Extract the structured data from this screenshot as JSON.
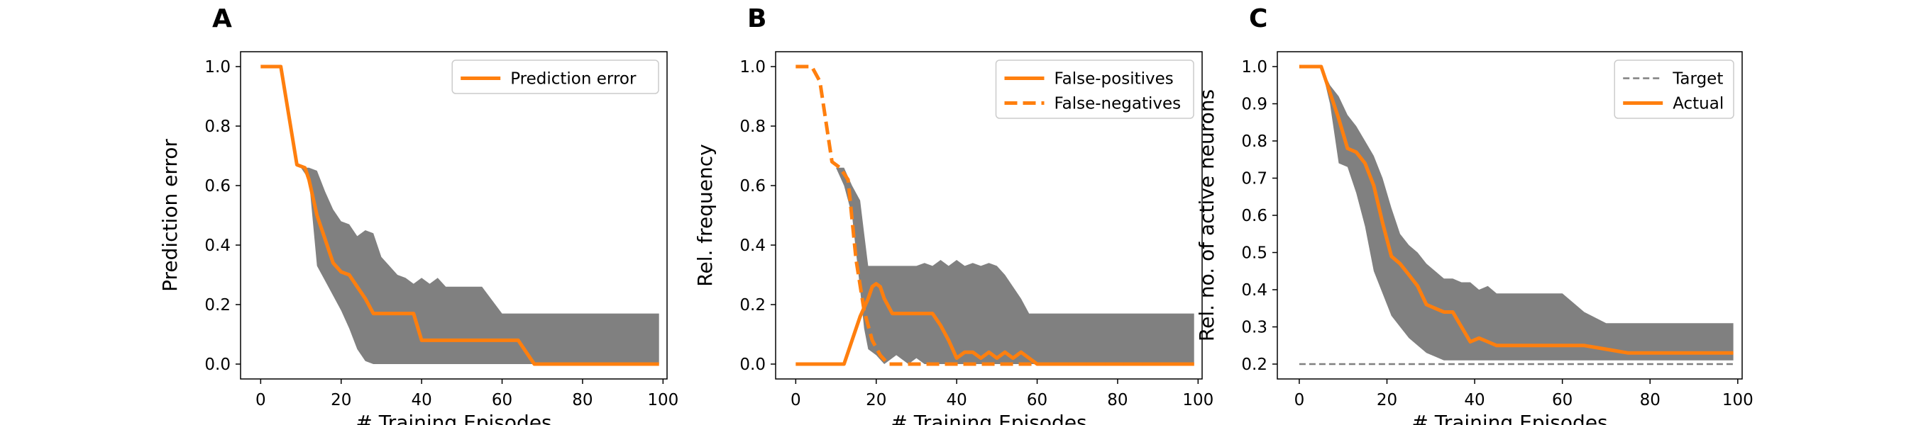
{
  "figure": {
    "panel_count": 3
  },
  "colors": {
    "accent": "#ff7f0e",
    "band": "#808080",
    "target": "#808080",
    "axes": "#000000"
  },
  "chart_data": [
    {
      "panel_label": "A",
      "type": "line",
      "xlabel": "# Training Episodes",
      "ylabel": "Prediction error",
      "xlim": [
        -5,
        101
      ],
      "ylim": [
        -0.05,
        1.05
      ],
      "xticks": [
        0,
        20,
        40,
        60,
        80,
        100
      ],
      "yticks": [
        0.0,
        0.2,
        0.4,
        0.6,
        0.8,
        1.0
      ],
      "ytick_decimals": 1,
      "grid": false,
      "legend_position": "top-right",
      "legend": [
        "Prediction error"
      ],
      "band": {
        "x": [
          10,
          12,
          14,
          16,
          18,
          20,
          22,
          24,
          26,
          28,
          30,
          32,
          34,
          36,
          38,
          40,
          42,
          44,
          46,
          50,
          55,
          60,
          65,
          70,
          75,
          80,
          85,
          90,
          95,
          99
        ],
        "upper": [
          0.66,
          0.66,
          0.65,
          0.58,
          0.52,
          0.48,
          0.47,
          0.43,
          0.45,
          0.44,
          0.36,
          0.33,
          0.3,
          0.29,
          0.27,
          0.29,
          0.27,
          0.29,
          0.26,
          0.26,
          0.26,
          0.17,
          0.17,
          0.17,
          0.17,
          0.17,
          0.17,
          0.17,
          0.17,
          0.17
        ],
        "lower": [
          0.66,
          0.62,
          0.33,
          0.28,
          0.23,
          0.18,
          0.12,
          0.05,
          0.01,
          0.0,
          0.0,
          0.0,
          0.0,
          0.0,
          0.0,
          0.0,
          0.0,
          0.0,
          0.0,
          0.0,
          0.0,
          0.0,
          0.0,
          0.0,
          0.0,
          0.0,
          0.0,
          0.0,
          0.0,
          0.0
        ]
      },
      "series": [
        {
          "name": "Prediction error",
          "style": "solid",
          "x": [
            0,
            5,
            9,
            11,
            12,
            14,
            16,
            18,
            20,
            22,
            24,
            26,
            28,
            30,
            38,
            40,
            64,
            68,
            99
          ],
          "y": [
            1.0,
            1.0,
            0.67,
            0.66,
            0.62,
            0.5,
            0.42,
            0.34,
            0.31,
            0.3,
            0.26,
            0.22,
            0.17,
            0.17,
            0.17,
            0.08,
            0.08,
            0.0,
            0.0
          ]
        }
      ]
    },
    {
      "panel_label": "B",
      "type": "line",
      "xlabel": "# Training Episodes",
      "ylabel": "Rel. frequency",
      "xlim": [
        -5,
        101
      ],
      "ylim": [
        -0.05,
        1.05
      ],
      "xticks": [
        0,
        20,
        40,
        60,
        80,
        100
      ],
      "yticks": [
        0.0,
        0.2,
        0.4,
        0.6,
        0.8,
        1.0
      ],
      "ytick_decimals": 1,
      "grid": false,
      "legend_position": "top-right",
      "legend": [
        "False-positives",
        "False-negatives"
      ],
      "band": {
        "x": [
          10,
          12,
          14,
          16,
          17,
          18,
          20,
          22,
          25,
          28,
          30,
          32,
          34,
          36,
          38,
          40,
          42,
          44,
          46,
          48,
          50,
          52,
          54,
          56,
          58,
          60,
          62,
          99
        ],
        "upper": [
          0.66,
          0.66,
          0.6,
          0.55,
          0.44,
          0.33,
          0.33,
          0.33,
          0.33,
          0.33,
          0.33,
          0.34,
          0.33,
          0.35,
          0.33,
          0.35,
          0.33,
          0.34,
          0.33,
          0.34,
          0.33,
          0.3,
          0.26,
          0.22,
          0.17,
          0.17,
          0.17,
          0.17
        ],
        "lower": [
          0.66,
          0.6,
          0.5,
          0.25,
          0.12,
          0.05,
          0.03,
          0.0,
          0.03,
          0.0,
          0.02,
          0.0,
          0.0,
          0.0,
          0.0,
          0.0,
          0.0,
          0.0,
          0.0,
          0.0,
          0.0,
          0.0,
          0.0,
          0.0,
          0.0,
          0.0,
          0.0,
          0.0
        ]
      },
      "series": [
        {
          "name": "False-positives",
          "style": "solid",
          "x": [
            0,
            12,
            14,
            16,
            18,
            19,
            20,
            21,
            22,
            24,
            30,
            34,
            36,
            38,
            40,
            42,
            44,
            46,
            48,
            50,
            52,
            54,
            56,
            58,
            60,
            99
          ],
          "y": [
            0.0,
            0.0,
            0.08,
            0.16,
            0.22,
            0.26,
            0.27,
            0.26,
            0.22,
            0.17,
            0.17,
            0.17,
            0.13,
            0.08,
            0.02,
            0.04,
            0.04,
            0.02,
            0.04,
            0.02,
            0.04,
            0.02,
            0.04,
            0.02,
            0.0,
            0.0
          ]
        },
        {
          "name": "False-negatives",
          "style": "dashed",
          "x": [
            0,
            4,
            6,
            9,
            11,
            13,
            15,
            17,
            19,
            21,
            23,
            99
          ],
          "y": [
            1.0,
            1.0,
            0.95,
            0.68,
            0.66,
            0.62,
            0.35,
            0.18,
            0.08,
            0.03,
            0.0,
            0.0
          ]
        }
      ]
    },
    {
      "panel_label": "C",
      "type": "line",
      "xlabel": "# Training Episodes",
      "ylabel": "Rel. no. of active neurons",
      "xlim": [
        -5,
        101
      ],
      "ylim": [
        0.16,
        1.04
      ],
      "xticks": [
        0,
        20,
        40,
        60,
        80,
        100
      ],
      "yticks": [
        0.2,
        0.3,
        0.4,
        0.5,
        0.6,
        0.7,
        0.8,
        0.9,
        1.0
      ],
      "ytick_decimals": 1,
      "grid": false,
      "legend_position": "top-right",
      "legend": [
        "Target",
        "Actual"
      ],
      "band": {
        "x": [
          5,
          7,
          9,
          11,
          13,
          15,
          17,
          19,
          21,
          23,
          25,
          27,
          29,
          31,
          33,
          35,
          37,
          39,
          41,
          43,
          45,
          47,
          55,
          60,
          65,
          70,
          80,
          90,
          99
        ],
        "upper": [
          1.0,
          0.95,
          0.92,
          0.87,
          0.84,
          0.8,
          0.76,
          0.7,
          0.62,
          0.55,
          0.52,
          0.5,
          0.47,
          0.45,
          0.43,
          0.43,
          0.42,
          0.42,
          0.4,
          0.41,
          0.39,
          0.39,
          0.39,
          0.39,
          0.34,
          0.31,
          0.31,
          0.31,
          0.31
        ],
        "lower": [
          1.0,
          0.9,
          0.74,
          0.73,
          0.66,
          0.57,
          0.45,
          0.39,
          0.33,
          0.3,
          0.27,
          0.25,
          0.23,
          0.22,
          0.21,
          0.21,
          0.21,
          0.21,
          0.21,
          0.21,
          0.21,
          0.21,
          0.21,
          0.21,
          0.21,
          0.21,
          0.21,
          0.21,
          0.21
        ]
      },
      "series": [
        {
          "name": "Target",
          "style": "dashed",
          "thin": true,
          "x": [
            0,
            99
          ],
          "y": [
            0.2,
            0.2
          ]
        },
        {
          "name": "Actual",
          "style": "solid",
          "x": [
            0,
            5,
            7,
            9,
            11,
            13,
            15,
            17,
            19,
            21,
            23,
            25,
            27,
            29,
            31,
            33,
            35,
            37,
            39,
            41,
            43,
            45,
            50,
            60,
            65,
            70,
            75,
            99
          ],
          "y": [
            1.0,
            1.0,
            0.93,
            0.86,
            0.78,
            0.77,
            0.74,
            0.68,
            0.58,
            0.49,
            0.47,
            0.44,
            0.41,
            0.36,
            0.35,
            0.34,
            0.34,
            0.3,
            0.26,
            0.27,
            0.26,
            0.25,
            0.25,
            0.25,
            0.25,
            0.24,
            0.23,
            0.23
          ]
        }
      ]
    }
  ]
}
